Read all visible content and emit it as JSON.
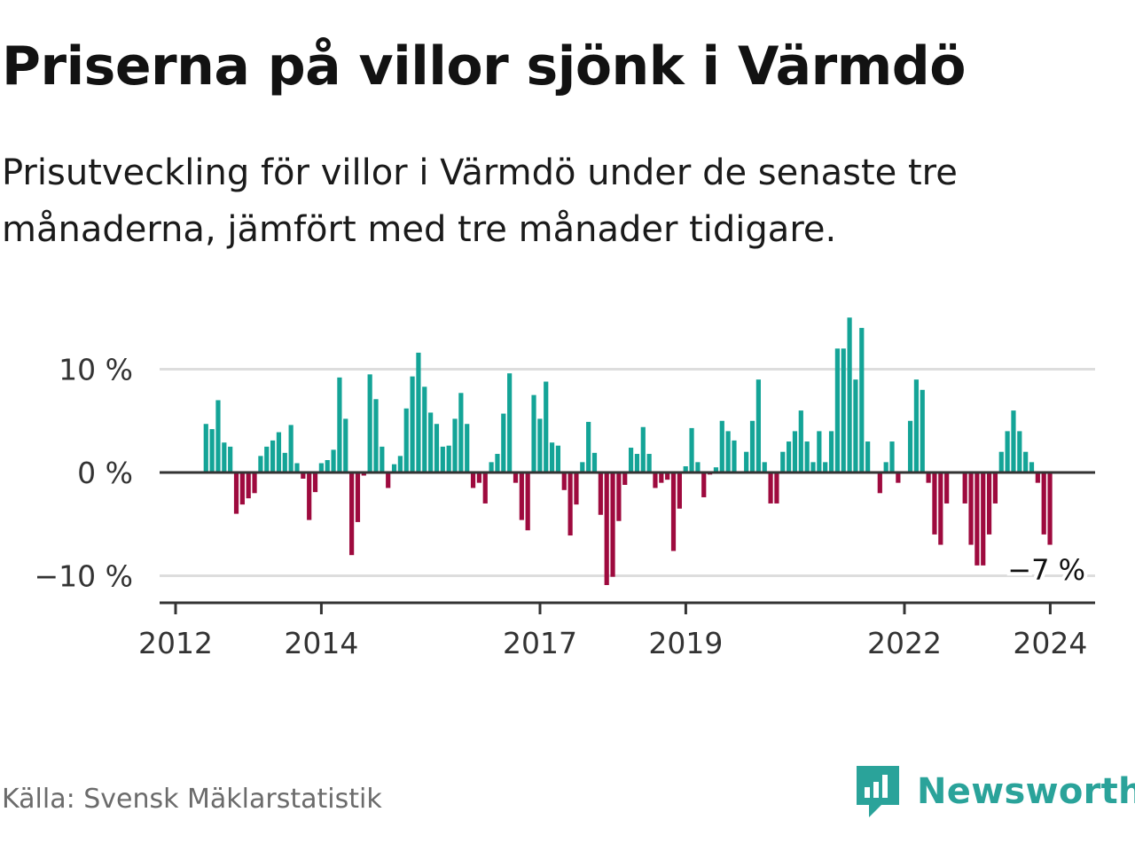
{
  "title": "Priserna på villor sjönk i Värmdö",
  "subtitle": "Prisutveckling för villor i Värmdö under de senaste tre månaderna, jämfört med tre månader tidigare.",
  "source": "Källa: Svensk Mäklarstatistik",
  "brand": {
    "name": "Newsworthy",
    "icon": "newsworthy-logo-icon"
  },
  "colors": {
    "positive": "#14a497",
    "negative": "#9e0a3e",
    "zero_line": "#333333",
    "grid": "#dddddd",
    "brand": "#2aa39a"
  },
  "chart_data": {
    "type": "bar",
    "title": "Prisutveckling för villor i Värmdö",
    "ylabel": "",
    "xlabel": "",
    "ylim": [
      -12.5,
      15.5
    ],
    "xlim": [
      2012.0,
      2024.5
    ],
    "y_ticks": [
      {
        "value": 10,
        "label": "10 %"
      },
      {
        "value": 0,
        "label": "0 %"
      },
      {
        "value": -10,
        "label": "−10 %"
      }
    ],
    "x_ticks": [
      {
        "value": 2012.0,
        "label": "2012"
      },
      {
        "value": 2014.0,
        "label": "2014"
      },
      {
        "value": 2017.0,
        "label": "2017"
      },
      {
        "value": 2019.0,
        "label": "2019"
      },
      {
        "value": 2022.0,
        "label": "2022"
      },
      {
        "value": 2024.0,
        "label": "2024"
      }
    ],
    "start": 2012.417,
    "step_years": 0.0833,
    "values": [
      4.7,
      4.2,
      7.0,
      2.9,
      2.5,
      -4.0,
      -3.1,
      -2.5,
      -2.0,
      1.6,
      2.5,
      3.1,
      3.9,
      1.9,
      4.6,
      0.9,
      -0.6,
      -4.6,
      -1.9,
      0.9,
      1.2,
      2.2,
      9.2,
      5.2,
      -8.0,
      -4.8,
      -0.3,
      9.5,
      7.1,
      2.5,
      -1.5,
      0.8,
      1.6,
      6.2,
      9.3,
      11.6,
      8.3,
      5.8,
      4.7,
      2.5,
      2.6,
      5.2,
      7.7,
      4.7,
      -1.5,
      -1.0,
      -3.0,
      1.0,
      1.8,
      5.7,
      9.6,
      -1.0,
      -4.6,
      -5.6,
      7.5,
      5.2,
      8.8,
      2.9,
      2.6,
      -1.7,
      -6.1,
      -3.1,
      1.0,
      4.9,
      1.9,
      -4.1,
      -10.9,
      -10.1,
      -4.7,
      -1.2,
      2.4,
      1.8,
      4.4,
      1.8,
      -1.5,
      -1.0,
      -0.7,
      -7.6,
      -3.5,
      0.6,
      4.3,
      1.0,
      -2.4,
      -0.2,
      0.5,
      5.0,
      4.0,
      3.1,
      0.0,
      2.0,
      5.0,
      9.0,
      1.0,
      -3.0,
      -3.0,
      2.0,
      3.0,
      4.0,
      6.0,
      3.0,
      1.0,
      4.0,
      1.0,
      4.0,
      12.0,
      12.0,
      15.0,
      9.0,
      14.0,
      3.0,
      0.0,
      -2.0,
      1.0,
      3.0,
      -1.0,
      0.0,
      5.0,
      9.0,
      8.0,
      -1.0,
      -6.0,
      -7.0,
      -3.0,
      0.0,
      0.0,
      -3.0,
      -7.0,
      -9.0,
      -9.0,
      -6.0,
      -3.0,
      2.0,
      4.0,
      6.0,
      4.0,
      2.0,
      1.0,
      -1.0,
      -6.0,
      -7.0
    ],
    "annotation": {
      "label": "−7 %",
      "value": -7
    }
  }
}
